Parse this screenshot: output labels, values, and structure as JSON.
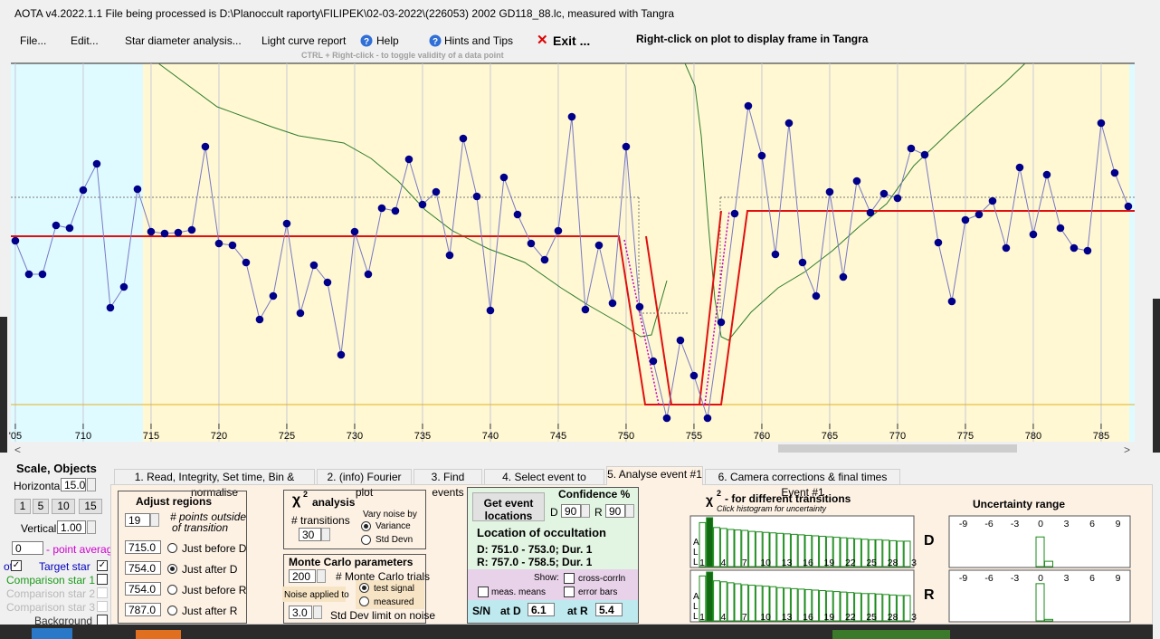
{
  "title_bar": "AOTA v4.2022.1.1    File being processed is D:\\Planoccult raporty\\FILIPEK\\02-03-2022\\(226053) 2002 GD118_88.lc, measured with Tangra",
  "menu": [
    "File...",
    "Edit...",
    "Star diameter analysis...",
    "Light curve report",
    "Help",
    "Hints and Tips",
    "Exit ..."
  ],
  "plot_hint": "Right-click on plot to display frame in Tangra",
  "plot_subhint": "CTRL + Right-click  -  to toggle validity of a data point",
  "chart_data": {
    "type": "scatter",
    "x": [
      705,
      706,
      707,
      708,
      709,
      710,
      711,
      712,
      713,
      714,
      715,
      716,
      717,
      718,
      719,
      720,
      721,
      722,
      723,
      724,
      725,
      726,
      727,
      728,
      729,
      730,
      731,
      732,
      733,
      734,
      735,
      736,
      737,
      738,
      739,
      740,
      741,
      742,
      743,
      744,
      745,
      746,
      747,
      748,
      749,
      750,
      751,
      752,
      753,
      754,
      755,
      756,
      757,
      758,
      759,
      760,
      761,
      762,
      763,
      764,
      765,
      766,
      767,
      768,
      769,
      770,
      771,
      772,
      773,
      774,
      775,
      776,
      777,
      778,
      779,
      780,
      781,
      782,
      783,
      784,
      785,
      786,
      787
    ],
    "values": [
      214,
      177,
      177,
      231,
      228,
      270,
      299,
      140,
      163,
      271,
      224,
      222,
      223,
      226,
      318,
      211,
      209,
      190,
      127,
      153,
      233,
      134,
      187,
      168,
      88,
      224,
      177,
      250,
      247,
      304,
      254,
      268,
      198,
      327,
      263,
      137,
      284,
      243,
      211,
      193,
      225,
      351,
      138,
      209,
      145,
      318,
      141,
      81,
      18,
      104,
      65,
      18,
      124,
      244,
      363,
      308,
      199,
      344,
      190,
      153,
      268,
      174,
      280,
      245,
      266,
      261,
      316,
      309,
      212,
      147,
      237,
      243,
      258,
      206,
      295,
      221,
      287,
      228,
      206,
      203,
      344,
      289,
      252
    ],
    "color": "#00008b",
    "line_color": "#7878c8",
    "grid_color": "#c8c8d8",
    "xlim": [
      704.67,
      787.47
    ],
    "ylim": [
      10,
      410
    ],
    "xticks": [
      {
        "value": 705,
        "label": "'05"
      },
      710,
      715,
      720,
      725,
      730,
      735,
      740,
      745,
      750,
      755,
      760,
      765,
      770,
      775,
      780,
      785
    ],
    "grid": true
  },
  "left_panel": {
    "title": "Scale,  Objects",
    "horizontal_label": "Horizontal",
    "horizontal_value": "15.0",
    "scale_buttons": [
      "1",
      "5",
      "10",
      "15"
    ],
    "vertical_label": "Vertical",
    "vertical_value": "1.00",
    "point_average_value": "0",
    "point_average_label": "- point average",
    "plots_label": "ots",
    "objects": [
      "Target star",
      "Comparison star 1",
      "Comparison star 2",
      "Comparison star 3",
      "Background"
    ]
  },
  "tabs": [
    "1.  Read, Integrity, Set time, Bin & normalise",
    "2. (info)  Fourier plot",
    "3. Find events",
    "4. Select event to analyse",
    "5. Analyse event #1",
    "6. Camera corrections & final times Event #1"
  ],
  "adjust_regions": {
    "title": "Adjust regions",
    "points_value": "19",
    "points_label": [
      "# points outside",
      "of transition"
    ],
    "rows": [
      {
        "value": "715.0",
        "label": "Just before D"
      },
      {
        "value": "754.0",
        "label": "Just after D"
      },
      {
        "value": "754.0",
        "label": "Just before R"
      },
      {
        "value": "787.0",
        "label": "Just after R"
      }
    ]
  },
  "chi2_analysis": {
    "symbol": "χ",
    "sup": "2",
    "title": "analysis",
    "transitions_label": "# transitions",
    "transitions_value": "30",
    "vary_label": "Vary noise by",
    "options": [
      "Variance",
      "Std Devn"
    ]
  },
  "monte_carlo": {
    "title": "Monte Carlo parameters",
    "trials_value": "200",
    "trials_label": "# Monte Carlo trials",
    "noise_label": "Noise applied to",
    "options": [
      "test signal",
      "measured"
    ],
    "limit_value": "3.0",
    "limit_label": "Std Dev limit on noise"
  },
  "event": {
    "button": [
      "Get event",
      "locations"
    ],
    "confidence_label": "Confidence %",
    "d_label": "D",
    "d_value": "90",
    "r_label": "R",
    "r_value": "90",
    "location_title": "Location of occultation",
    "d_location": "D: 751.0 - 753.0; Dur. 1",
    "r_location": "R: 757.0 - 758.5; Dur. 1",
    "show_label": "Show:",
    "checks": [
      "meas. means",
      "cross-corrln",
      "error bars"
    ],
    "sn_label": "S/N",
    "at_d": "at D",
    "sn_d": "6.1",
    "at_r": "at R",
    "sn_r": "5.4"
  },
  "chi2_histograms": {
    "symbol": "χ",
    "sup": "2",
    "title": "- for different transitions",
    "subtitle": "Click histogram for uncertainty",
    "side_label": [
      "A",
      "L",
      "L"
    ],
    "axis_labels": [
      "1",
      "4",
      "7",
      "10",
      "13",
      "16",
      "19",
      "22",
      "25",
      "28",
      "3"
    ],
    "highlight": 1,
    "D": {
      "label": "D",
      "values": [
        0.9,
        1.0,
        0.8,
        0.78,
        0.76,
        0.75,
        0.74,
        0.72,
        0.71,
        0.7,
        0.69,
        0.68,
        0.67,
        0.66,
        0.65,
        0.64,
        0.63,
        0.62,
        0.61,
        0.6,
        0.59,
        0.58,
        0.57,
        0.56,
        0.55,
        0.55,
        0.54,
        0.53,
        0.52,
        0.52
      ]
    },
    "R": {
      "label": "R",
      "values": [
        0.92,
        1.0,
        0.82,
        0.8,
        0.78,
        0.76,
        0.74,
        0.73,
        0.72,
        0.71,
        0.7,
        0.68,
        0.67,
        0.66,
        0.65,
        0.64,
        0.63,
        0.62,
        0.61,
        0.6,
        0.59,
        0.58,
        0.57,
        0.56,
        0.56,
        0.55,
        0.54,
        0.53,
        0.52,
        0.52
      ]
    }
  },
  "uncertainty": {
    "title": "Uncertainty range",
    "ticks": [
      -9,
      -6,
      -3,
      0,
      3,
      6,
      9
    ],
    "D": {
      "offsets": [
        0,
        1
      ],
      "values": [
        0.78,
        0.14
      ]
    },
    "R": {
      "offsets": [
        0,
        1
      ],
      "values": [
        0.98,
        0.04
      ]
    }
  }
}
